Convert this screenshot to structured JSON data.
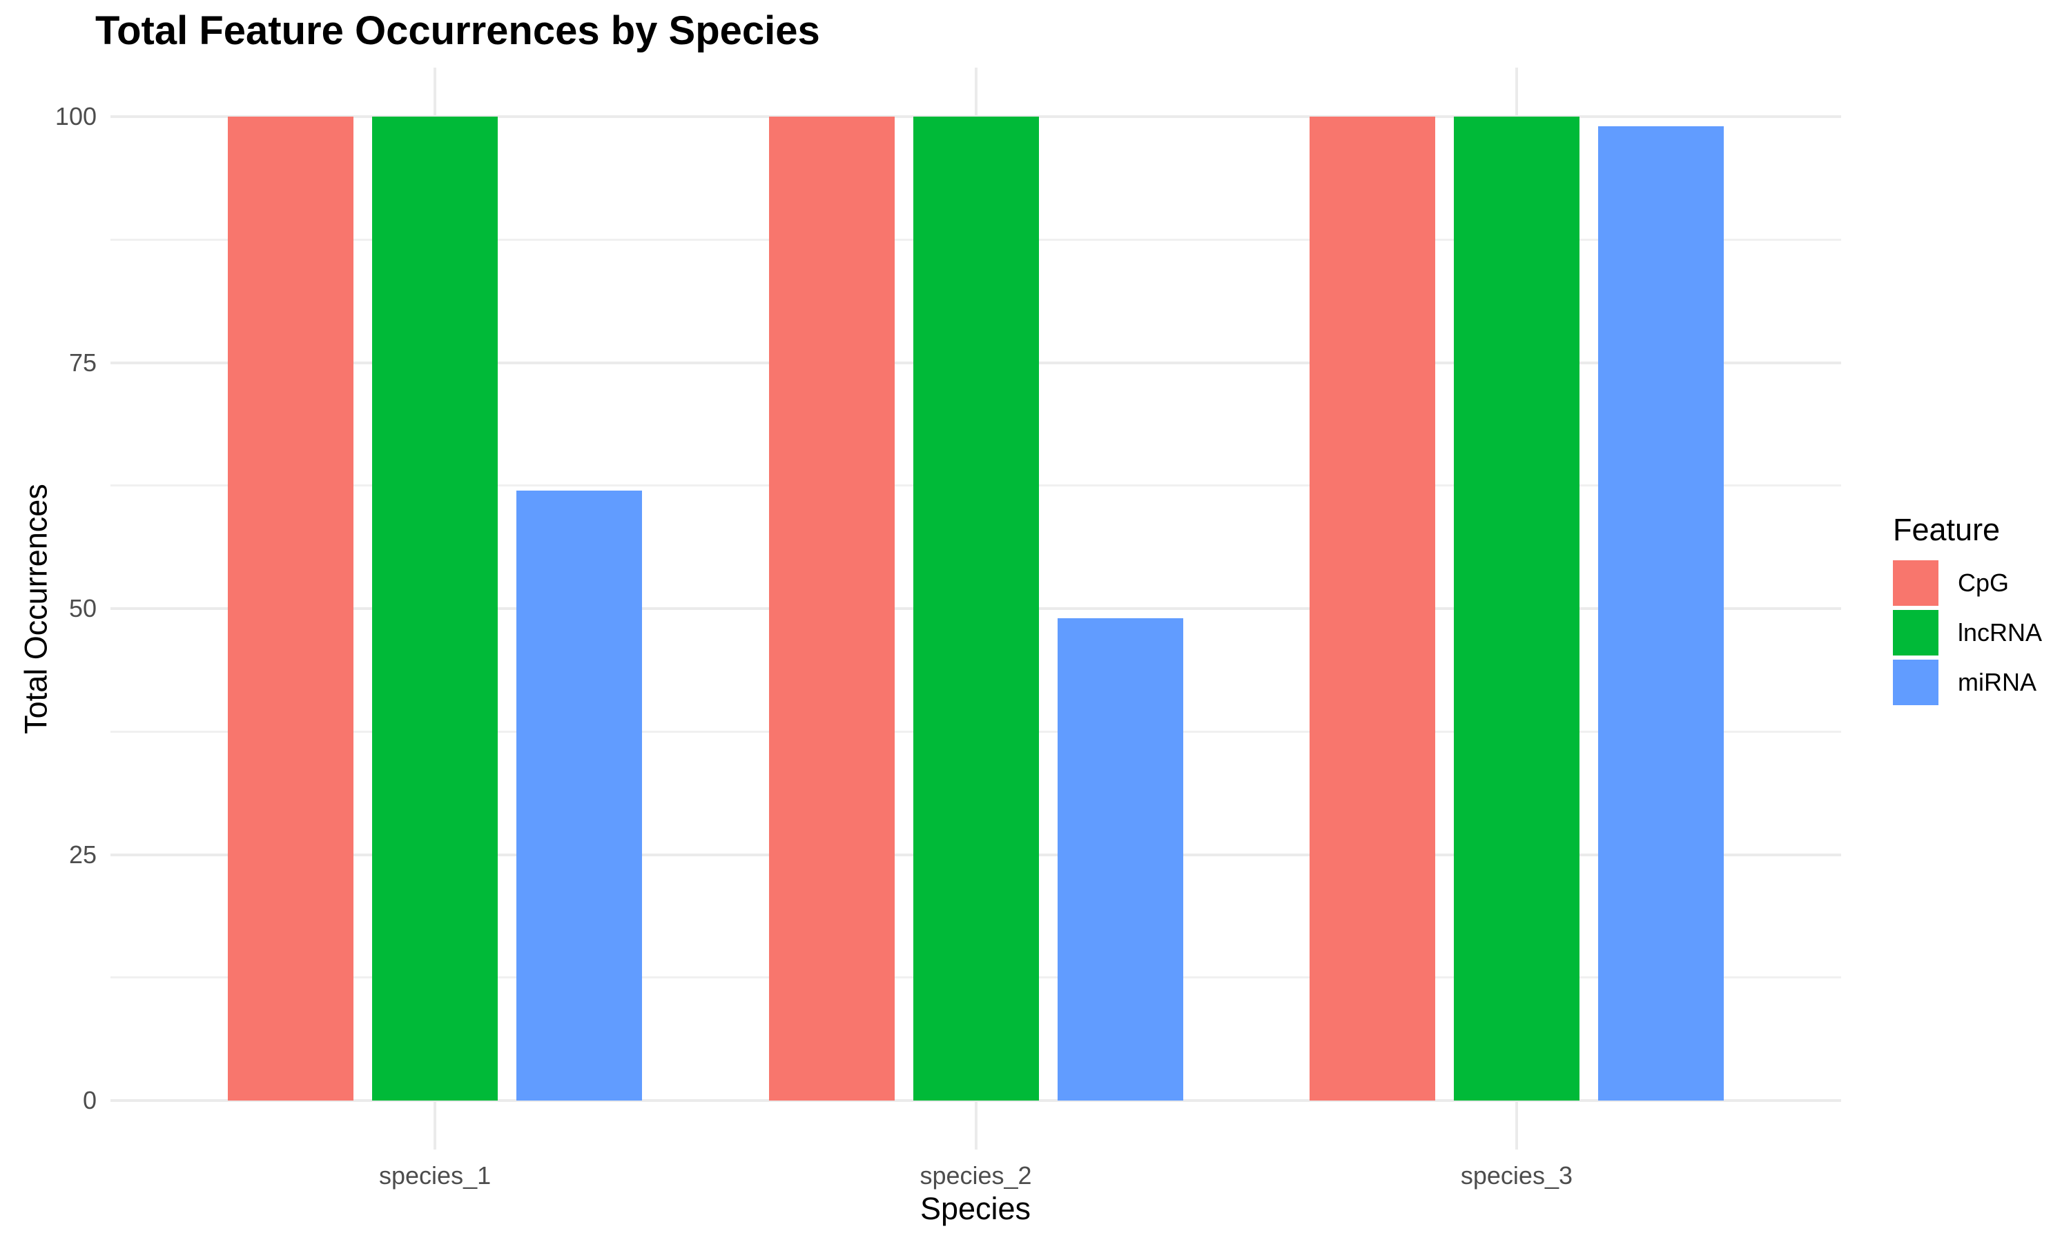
{
  "chart_data": {
    "type": "bar",
    "title": "Total Feature Occurrences by Species",
    "xlabel": "Species",
    "ylabel": "Total Occurrences",
    "categories": [
      "species_1",
      "species_2",
      "species_3"
    ],
    "series": [
      {
        "name": "CpG",
        "color": "#F8766D",
        "values": [
          100,
          100,
          100
        ]
      },
      {
        "name": "lncRNA",
        "color": "#00BA38",
        "values": [
          100,
          100,
          100
        ]
      },
      {
        "name": "miRNA",
        "color": "#619CFF",
        "values": [
          62,
          49,
          99
        ]
      }
    ],
    "ylim": [
      0,
      100
    ],
    "y_major_ticks": [
      0,
      25,
      50,
      75,
      100
    ],
    "y_minor_ticks": [
      12.5,
      37.5,
      62.5,
      87.5
    ],
    "grid": true,
    "legend_title": "Feature",
    "legend_position": "right",
    "colors": {
      "background": "#FFFFFF",
      "grid_major": "#EBEBEB",
      "grid_minor": "#F0F0F0",
      "tick_label": "#4D4D4D",
      "axis_title": "#000000",
      "title": "#000000"
    }
  }
}
